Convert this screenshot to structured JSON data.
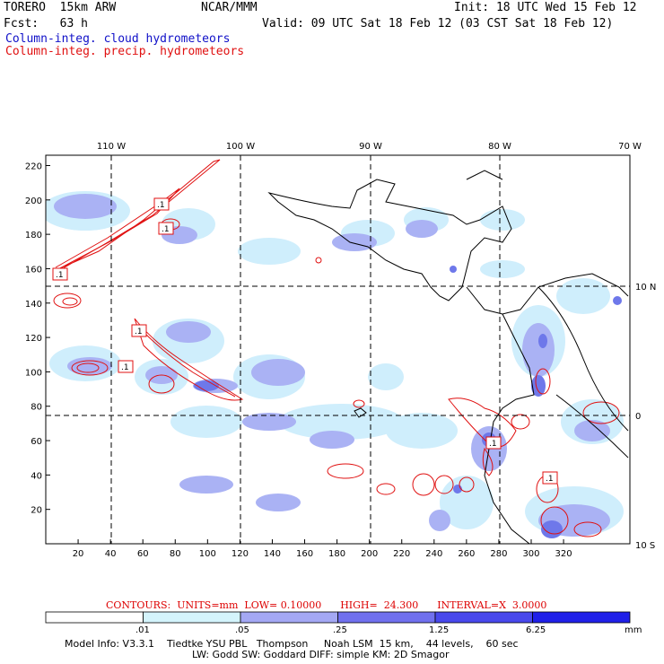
{
  "header": {
    "model": "TORERO  15km ARW",
    "center": "NCAR/MMM",
    "init": "Init: 18 UTC Wed 15 Feb 12",
    "fcst": "Fcst:   63 h",
    "valid": "Valid: 09 UTC Sat 18 Feb 12 (03 CST Sat 18 Feb 12)",
    "field_cloud": "Column-integ. cloud hydrometeors",
    "field_precip": "Column-integ. precip. hydrometeors"
  },
  "map": {
    "lon_labels": [
      "110 W",
      "100 W",
      "90 W",
      "80 W",
      "70 W"
    ],
    "lat_labels": [
      "10 N",
      "0",
      "10 S"
    ],
    "x_ticks": [
      "20",
      "40",
      "60",
      "80",
      "100",
      "120",
      "140",
      "160",
      "180",
      "200",
      "220",
      "240",
      "260",
      "280",
      "300",
      "320"
    ],
    "y_ticks": [
      "20",
      "40",
      "60",
      "80",
      "100",
      "120",
      "140",
      "160",
      "180",
      "200",
      "220"
    ],
    "contour_labels": [
      ".1",
      ".1",
      ".1",
      ".1",
      ".1",
      ".1",
      ".1"
    ],
    "colors": {
      "cloud_light": "#cfeefc",
      "cloud_mid": "#b4bcf4",
      "cloud_dark": "#6e78ea",
      "contour": "#e01010"
    }
  },
  "legend": {
    "contours_text": "CONTOURS:  UNITS=mm  LOW= 0.10000      HIGH=  24.300      INTERVAL=X  3.0000",
    "colorbar_labels": [
      ".01",
      ".05",
      ".25",
      "1.25",
      "6.25"
    ],
    "units": "mm",
    "colorbar_colors": [
      "#ffffff",
      "#d4f4fc",
      "#a4a8f4",
      "#7070ee",
      "#4848ec",
      "#2020e8"
    ]
  },
  "footer": {
    "line1": "Model Info: V3.3.1    Tiedtke YSU PBL   Thompson     Noah LSM  15 km,    44 levels,    60 sec",
    "line2": "LW: Godd SW: Goddard DIFF: simple KM: 2D Smagor"
  }
}
